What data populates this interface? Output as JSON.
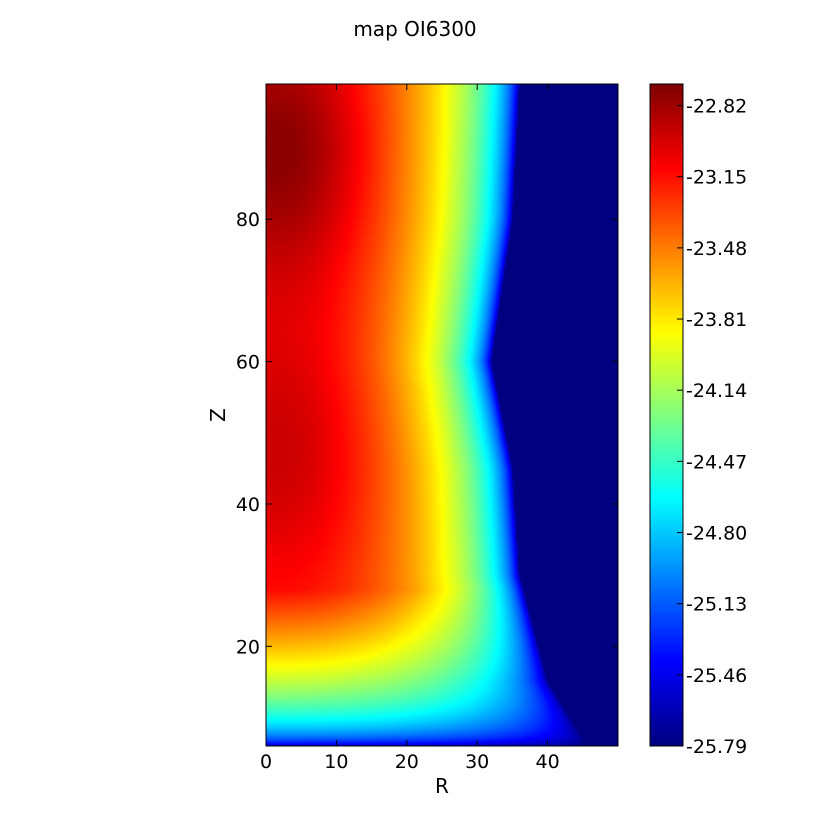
{
  "chart_data": {
    "type": "heatmap",
    "title": "map OI6300",
    "xlabel": "R",
    "ylabel": "Z",
    "xlim": [
      0,
      50
    ],
    "ylim": [
      6,
      99
    ],
    "xticks": [
      0,
      10,
      20,
      30,
      40
    ],
    "yticks": [
      20,
      40,
      60,
      80
    ],
    "colormap": "jet",
    "colorbar": {
      "min": -25.79,
      "max": -22.72,
      "ticks": [
        -22.82,
        -23.15,
        -23.48,
        -23.81,
        -24.14,
        -24.47,
        -24.8,
        -25.13,
        -25.46,
        -25.79
      ],
      "tick_labels": [
        "-22.82",
        "-23.15",
        "-23.48",
        "-23.81",
        "-24.14",
        "-24.47",
        "-24.80",
        "-25.13",
        "-25.46",
        "-25.79"
      ]
    },
    "approx_features": {
      "background_value": -25.79,
      "outer_edge_R_by_Z": [
        {
          "z": 99,
          "r": 36
        },
        {
          "z": 80,
          "r": 35
        },
        {
          "z": 60,
          "r": 32
        },
        {
          "z": 45,
          "r": 35
        },
        {
          "z": 30,
          "r": 36
        },
        {
          "z": 15,
          "r": 40
        },
        {
          "z": 7,
          "r": 45
        }
      ],
      "peaks": [
        {
          "r": 2,
          "z": 90,
          "value": -22.75
        },
        {
          "r": 2,
          "z": 47,
          "value": -22.95
        }
      ]
    }
  }
}
